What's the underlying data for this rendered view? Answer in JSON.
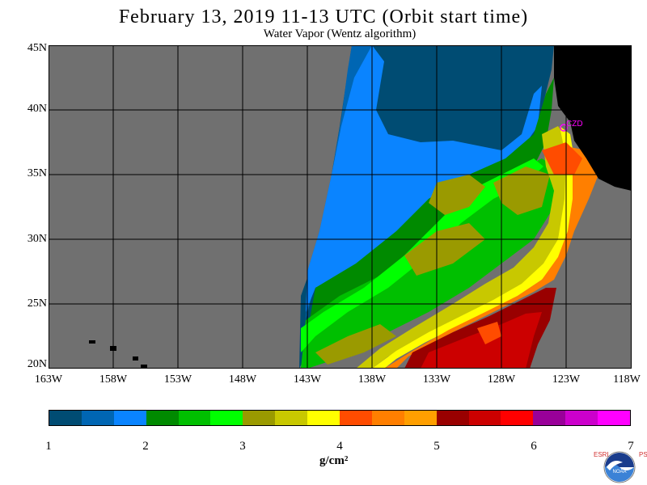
{
  "title": "February 13, 2019  11-13 UTC  (Orbit start time)",
  "subtitle": "Water Vapor (Wentz algorithm)",
  "lat_labels": [
    "45N",
    "40N",
    "35N",
    "30N",
    "25N",
    "20N"
  ],
  "lon_labels": [
    "163W",
    "158W",
    "153W",
    "148W",
    "143W",
    "138W",
    "133W",
    "128W",
    "123W",
    "118W"
  ],
  "station_label": "CZD",
  "colorbar": {
    "tick_labels": [
      "1",
      "2",
      "3",
      "4",
      "5",
      "6",
      "7"
    ],
    "units": "g/cm²",
    "colors": [
      "#004c73",
      "#0066b3",
      "#0a84ff",
      "#008a00",
      "#00bf00",
      "#00ff00",
      "#9a9a00",
      "#c8c800",
      "#ffff00",
      "#ff4c00",
      "#ff7f00",
      "#ff9f00",
      "#990000",
      "#cc0000",
      "#ff0000",
      "#990099",
      "#cc00cc",
      "#ff00ff"
    ]
  },
  "colors": {
    "no_data": "#707070",
    "land": "#000000",
    "grid": "#000000"
  },
  "logo": {
    "left_letters": "ESRL",
    "right_letters": "PSD",
    "center": "NOAA"
  },
  "chart_data": {
    "type": "heatmap",
    "title": "February 13, 2019  11-13 UTC  (Orbit start time)",
    "subtitle": "Water Vapor (Wentz algorithm)",
    "xlabel": "",
    "ylabel": "",
    "xlim": [
      -163,
      -118
    ],
    "ylim": [
      20,
      45
    ],
    "x_ticks": [
      "163W",
      "158W",
      "153W",
      "148W",
      "143W",
      "138W",
      "133W",
      "128W",
      "123W",
      "118W"
    ],
    "y_ticks": [
      "45N",
      "40N",
      "35N",
      "30N",
      "25N",
      "20N"
    ],
    "colorbar_range": [
      1,
      7
    ],
    "colorbar_units": "g/cm²",
    "grid": true,
    "swath_regions": [
      {
        "region": "northern swath",
        "value_range": [
          1.0,
          1.7
        ]
      },
      {
        "region": "central band",
        "value_range": [
          2.0,
          3.7
        ]
      },
      {
        "region": "southeast (near 23N, 130W)",
        "value_range": [
          5.0,
          5.7
        ]
      },
      {
        "region": "coastal band near California",
        "value_range": [
          3.7,
          4.7
        ]
      }
    ]
  }
}
